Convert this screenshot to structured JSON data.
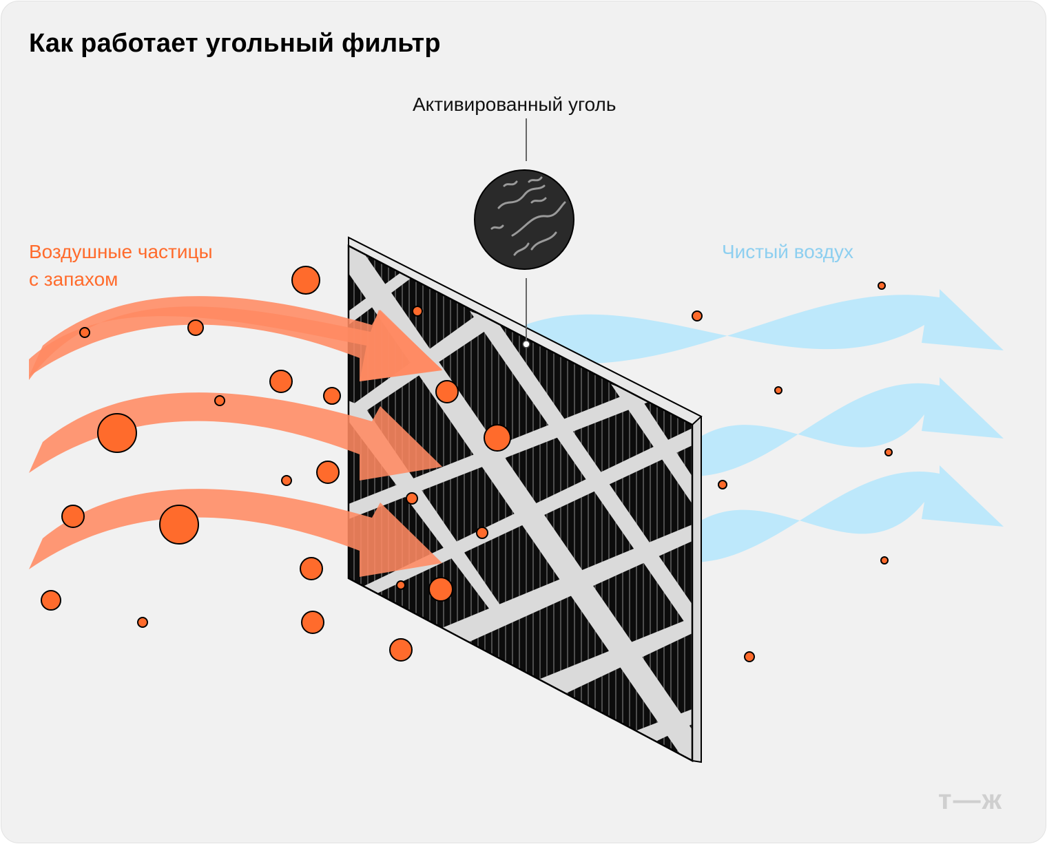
{
  "title": "Как работает угольный фильтр",
  "labels": {
    "incoming": [
      "Воздушные частицы",
      "с запахом"
    ],
    "outgoing": "Чистый воздух",
    "carbon": "Активированный уголь"
  },
  "brand": {
    "logo_text": "т—ж"
  },
  "colors": {
    "background": "#f1f1f1",
    "particle": "#ff6b2c",
    "incoming_air": "#ff8f6a",
    "clean_air": "#bde8fb",
    "filter": "#0c0c0c",
    "filter_frame": "#dadada",
    "carbon_circle": "#2a2a2a"
  },
  "icons": [
    "incoming-air-arrow",
    "clean-air-arrow",
    "carbon-filter",
    "activated-carbon-zoom-icon",
    "odor-particle"
  ]
}
